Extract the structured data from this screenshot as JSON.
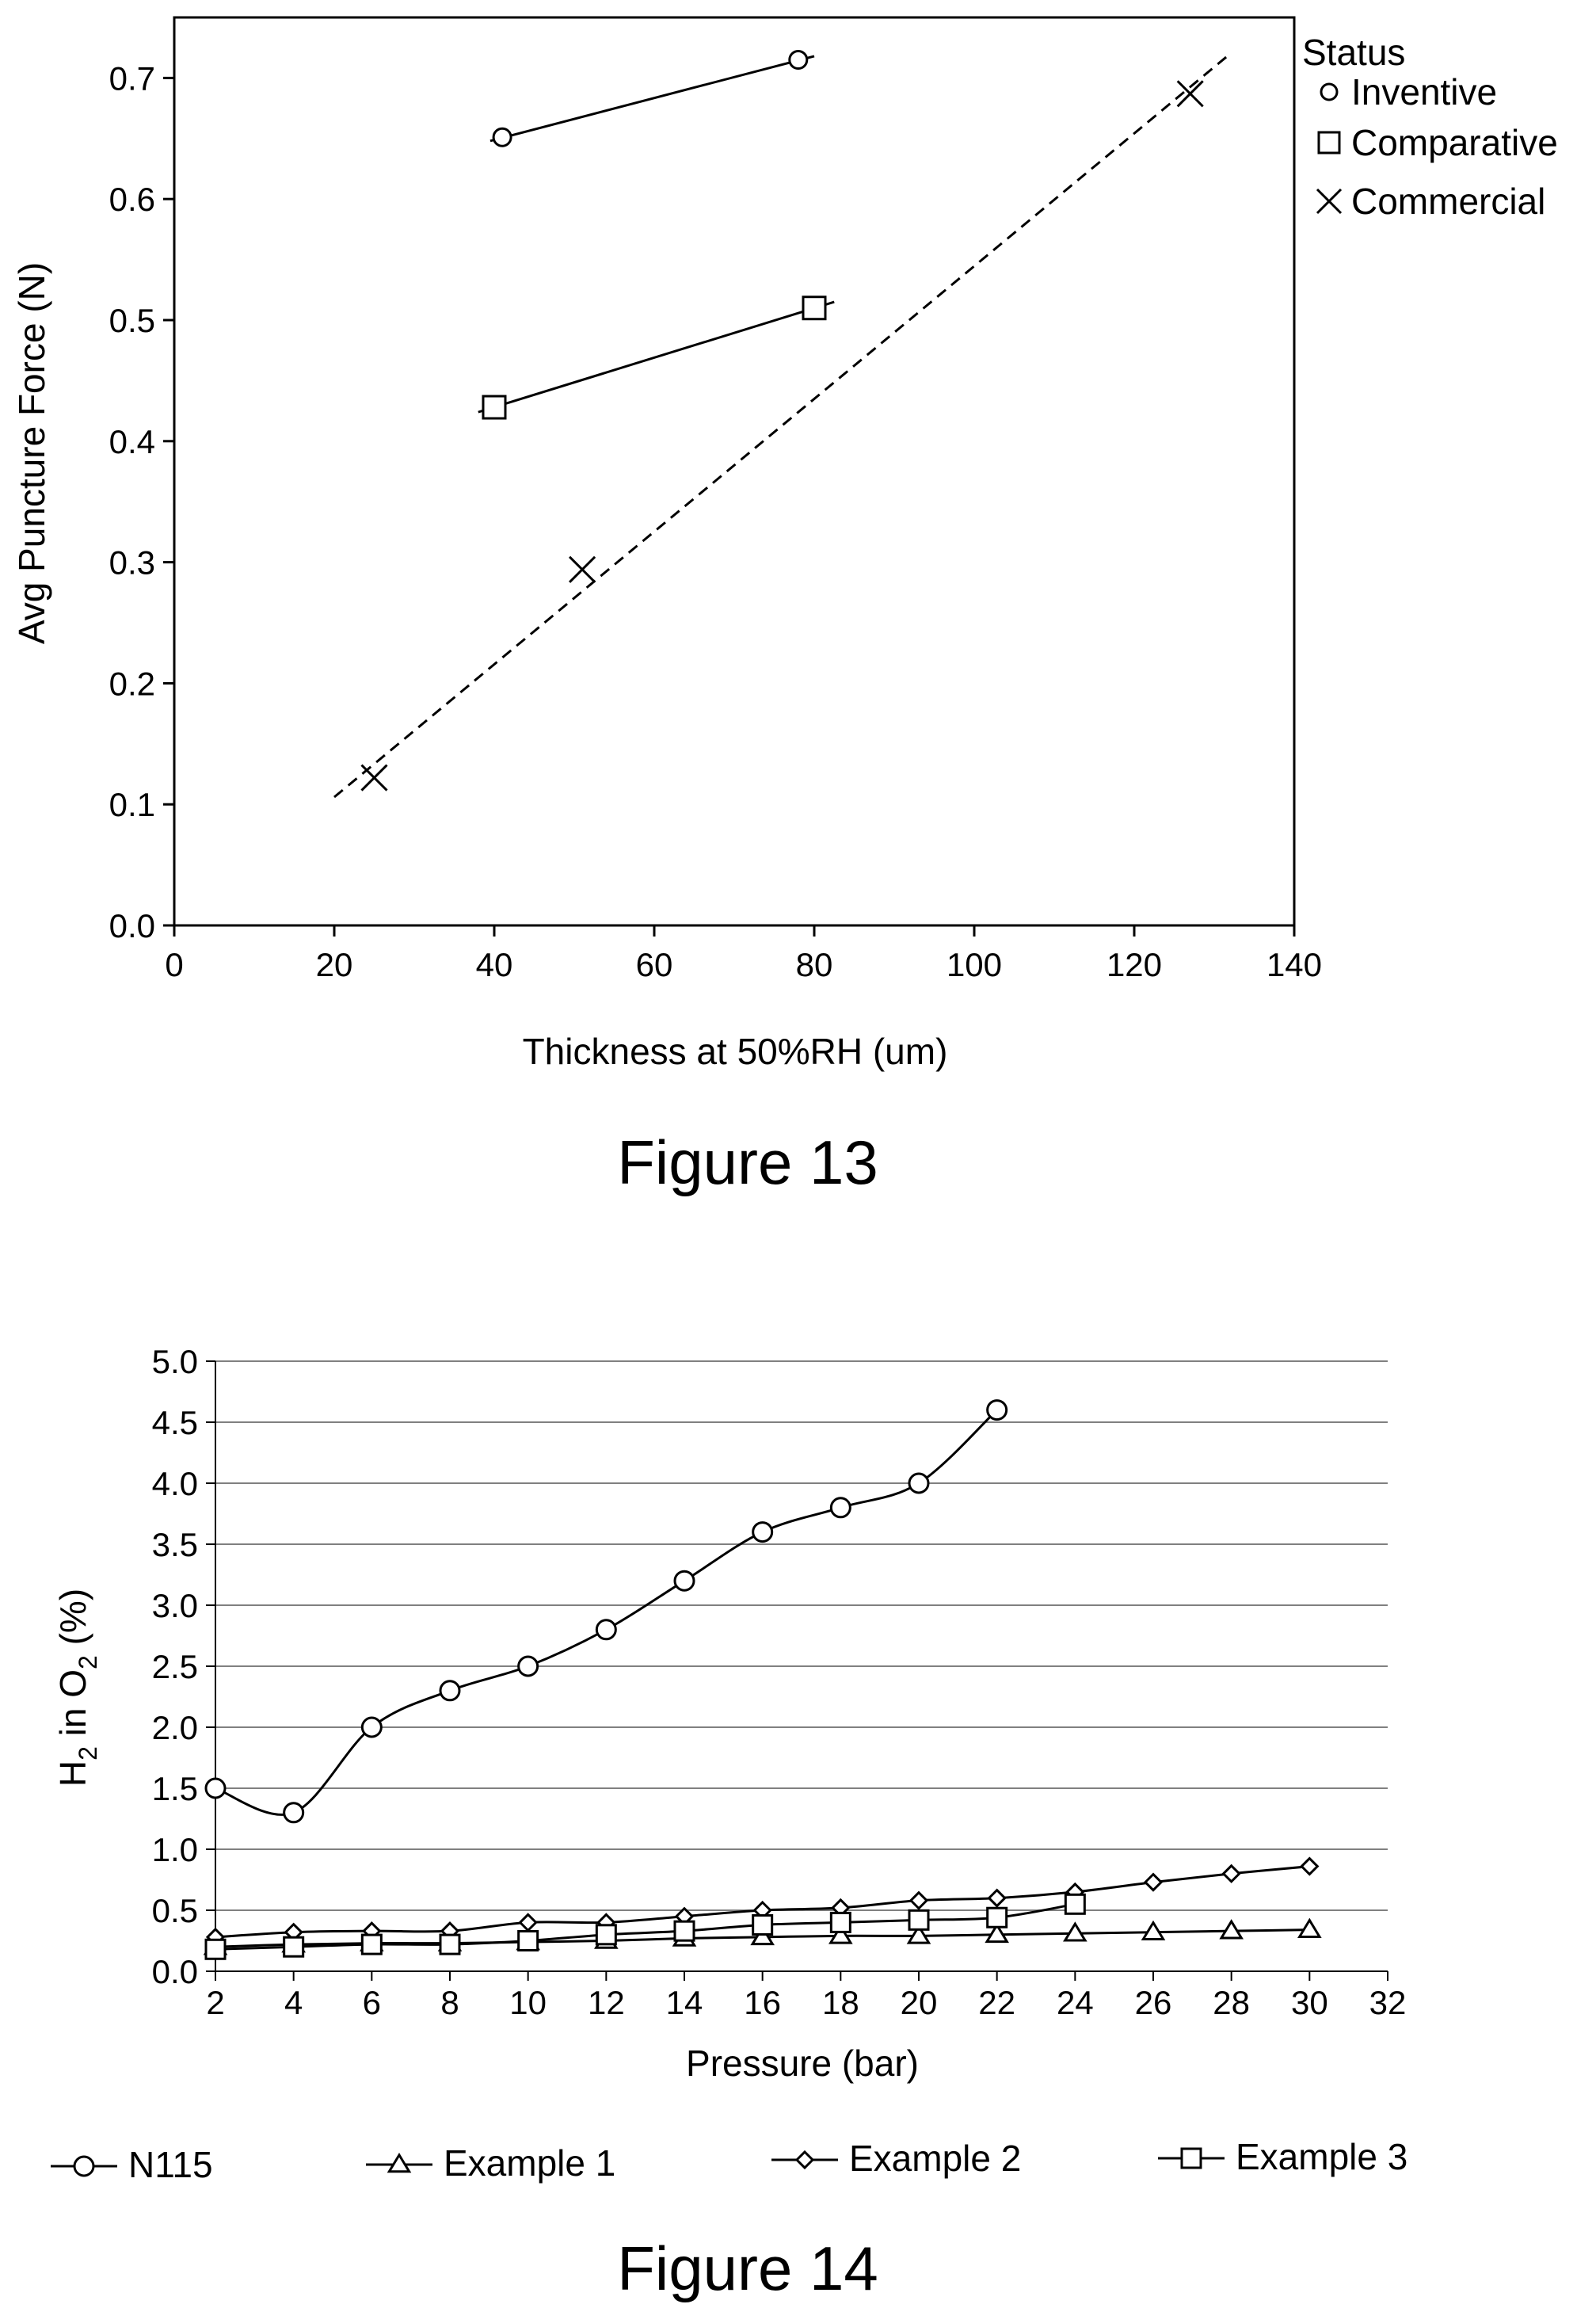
{
  "chart_data": [
    {
      "type": "scatter",
      "caption": "Figure 13",
      "xlabel": "Thickness at 50%RH (um)",
      "ylabel": "Avg Puncture Force (N)",
      "xlim": [
        0,
        140
      ],
      "ylim": [
        0.0,
        0.75
      ],
      "xticks": [
        "0",
        "20",
        "40",
        "60",
        "80",
        "100",
        "120",
        "140"
      ],
      "yticks": [
        "0.0",
        "0.1",
        "0.2",
        "0.3",
        "0.4",
        "0.5",
        "0.6",
        "0.7"
      ],
      "legend_title": "Status",
      "legend_position": "top-right",
      "grid": false,
      "series": [
        {
          "name": "Inventive",
          "marker": "circle",
          "x": [
            41,
            78
          ],
          "y": [
            0.651,
            0.715
          ],
          "fit": {
            "style": "solid",
            "x": [
              39.5,
              80
            ],
            "y": [
              0.648,
              0.718
            ]
          }
        },
        {
          "name": "Comparative",
          "marker": "square",
          "x": [
            40,
            80
          ],
          "y": [
            0.428,
            0.51
          ],
          "fit": {
            "style": "solid",
            "x": [
              38,
              82.5
            ],
            "y": [
              0.424,
              0.515
            ]
          }
        },
        {
          "name": "Commercial",
          "marker": "x",
          "x": [
            25,
            51,
            127
          ],
          "y": [
            0.122,
            0.294,
            0.687
          ],
          "fit": {
            "style": "dashed",
            "x": [
              20,
              132
            ],
            "y": [
              0.106,
              0.72
            ]
          }
        }
      ]
    },
    {
      "type": "line",
      "caption": "Figure 14",
      "xlabel": "Pressure (bar)",
      "ylabel_main": "H",
      "ylabel_sub1": "2",
      "ylabel_mid": " in O",
      "ylabel_sub2": "2",
      "ylabel_end": " (%)",
      "xlim": [
        2,
        32
      ],
      "ylim": [
        0.0,
        5.0
      ],
      "xticks": [
        "2",
        "4",
        "6",
        "8",
        "10",
        "12",
        "14",
        "16",
        "18",
        "20",
        "22",
        "24",
        "26",
        "28",
        "30",
        "32"
      ],
      "yticks": [
        "0.0",
        "0.5",
        "1.0",
        "1.5",
        "2.0",
        "2.5",
        "3.0",
        "3.5",
        "4.0",
        "4.5",
        "5.0"
      ],
      "grid": true,
      "legend_position": "bottom",
      "series": [
        {
          "name": "N115",
          "marker": "circle",
          "x": [
            2,
            4,
            6,
            8,
            10,
            12,
            14,
            16,
            18,
            20,
            22
          ],
          "y": [
            1.5,
            1.3,
            2.0,
            2.3,
            2.5,
            2.8,
            3.2,
            3.6,
            3.8,
            4.0,
            4.6
          ]
        },
        {
          "name": "Example 1",
          "marker": "triangle",
          "x": [
            2,
            4,
            6,
            8,
            10,
            12,
            14,
            16,
            18,
            20,
            22,
            24,
            26,
            28,
            30
          ],
          "y": [
            0.2,
            0.22,
            0.23,
            0.23,
            0.24,
            0.25,
            0.27,
            0.28,
            0.29,
            0.29,
            0.3,
            0.31,
            0.32,
            0.33,
            0.34
          ]
        },
        {
          "name": "Example 2",
          "marker": "diamond",
          "x": [
            2,
            4,
            6,
            8,
            10,
            12,
            14,
            16,
            18,
            20,
            22,
            24,
            26,
            28,
            30
          ],
          "y": [
            0.28,
            0.32,
            0.33,
            0.33,
            0.4,
            0.4,
            0.45,
            0.5,
            0.52,
            0.58,
            0.6,
            0.65,
            0.73,
            0.8,
            0.86
          ]
        },
        {
          "name": "Example 3",
          "marker": "square",
          "x": [
            2,
            4,
            6,
            8,
            10,
            12,
            14,
            16,
            18,
            20,
            22,
            24
          ],
          "y": [
            0.18,
            0.2,
            0.22,
            0.22,
            0.25,
            0.3,
            0.33,
            0.38,
            0.4,
            0.42,
            0.44,
            0.55
          ]
        }
      ]
    }
  ]
}
